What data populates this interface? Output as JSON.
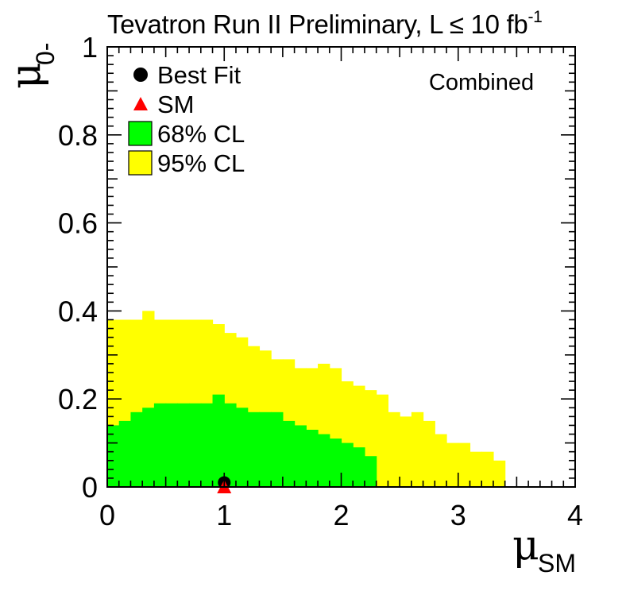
{
  "chart_data": {
    "type": "heatmap",
    "title": "Tevatron Run II Preliminary, L ≤ 10 fb",
    "title_superscript": "-1",
    "annotation": "Combined",
    "xlabel": "μ",
    "xlabel_sub": "SM",
    "ylabel": "μ",
    "ylabel_sub": "0-",
    "xlim": [
      0,
      4
    ],
    "ylim": [
      0,
      1
    ],
    "x_ticks": [
      "0",
      "1",
      "2",
      "3",
      "4"
    ],
    "y_ticks": [
      "0",
      "0.2",
      "0.4",
      "0.6",
      "0.8",
      "1"
    ],
    "legend": [
      {
        "label": "Best Fit",
        "marker": "circle",
        "color": "#000000"
      },
      {
        "label": "SM",
        "marker": "triangle",
        "color": "#ff0000"
      },
      {
        "label": "68% CL",
        "marker": "box",
        "color": "#00ff00"
      },
      {
        "label": "95% CL",
        "marker": "box",
        "color": "#ffff00"
      }
    ],
    "legend_position": "top-left",
    "grid": false,
    "bin_width": 0.1,
    "region_95_upper": [
      0.38,
      0.38,
      0.38,
      0.4,
      0.38,
      0.38,
      0.38,
      0.38,
      0.38,
      0.37,
      0.35,
      0.34,
      0.32,
      0.31,
      0.29,
      0.29,
      0.27,
      0.27,
      0.28,
      0.27,
      0.24,
      0.23,
      0.22,
      0.21,
      0.17,
      0.16,
      0.17,
      0.15,
      0.12,
      0.1,
      0.1,
      0.08,
      0.08,
      0.06,
      0.06,
      0.04,
      0.04,
      0.04,
      0.04,
      0.04
    ],
    "region_95_bins": 34,
    "region_68_upper": [
      0.14,
      0.15,
      0.17,
      0.18,
      0.19,
      0.19,
      0.19,
      0.19,
      0.19,
      0.21,
      0.19,
      0.18,
      0.17,
      0.17,
      0.17,
      0.15,
      0.14,
      0.13,
      0.12,
      0.11,
      0.1,
      0.09,
      0.07,
      0.07,
      0.05,
      0.03,
      0.03,
      0.03,
      0.03,
      0.03
    ],
    "region_68_bins": 23,
    "best_fit": {
      "x": 1.0,
      "y": 0.01
    },
    "sm_point": {
      "x": 1.0,
      "y": 0.0
    },
    "colors": {
      "cl68": "#00ff00",
      "cl95": "#ffff00",
      "best_fit": "#000000",
      "sm": "#ff0000"
    }
  }
}
